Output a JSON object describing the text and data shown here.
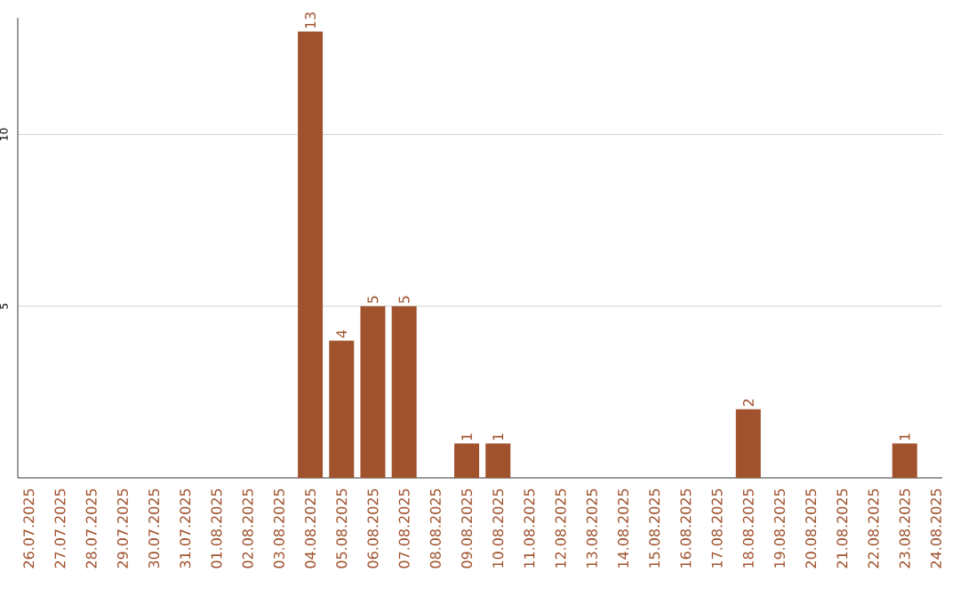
{
  "chart_data": {
    "type": "bar",
    "categories": [
      "26.07.2025",
      "27.07.2025",
      "28.07.2025",
      "29.07.2025",
      "30.07.2025",
      "31.07.2025",
      "01.08.2025",
      "02.08.2025",
      "03.08.2025",
      "04.08.2025",
      "05.08.2025",
      "06.08.2025",
      "07.08.2025",
      "08.08.2025",
      "09.08.2025",
      "10.08.2025",
      "11.08.2025",
      "12.08.2025",
      "13.08.2025",
      "14.08.2025",
      "15.08.2025",
      "16.08.2025",
      "17.08.2025",
      "18.08.2025",
      "19.08.2025",
      "20.08.2025",
      "21.08.2025",
      "22.08.2025",
      "23.08.2025",
      "24.08.2025"
    ],
    "values": [
      0,
      0,
      0,
      0,
      0,
      0,
      0,
      0,
      0,
      13,
      4,
      5,
      5,
      0,
      1,
      1,
      0,
      0,
      0,
      0,
      0,
      0,
      0,
      2,
      0,
      0,
      0,
      0,
      1,
      0
    ],
    "value_labels": [
      null,
      null,
      null,
      null,
      null,
      null,
      null,
      null,
      null,
      "13",
      "4",
      "5",
      "5",
      null,
      "1",
      "1",
      null,
      null,
      null,
      null,
      null,
      null,
      null,
      "2",
      null,
      null,
      null,
      null,
      "1",
      null
    ],
    "color": "#a0522d",
    "ylim": [
      0,
      13.4
    ],
    "yticks": [
      5,
      10
    ],
    "grid": "y"
  }
}
